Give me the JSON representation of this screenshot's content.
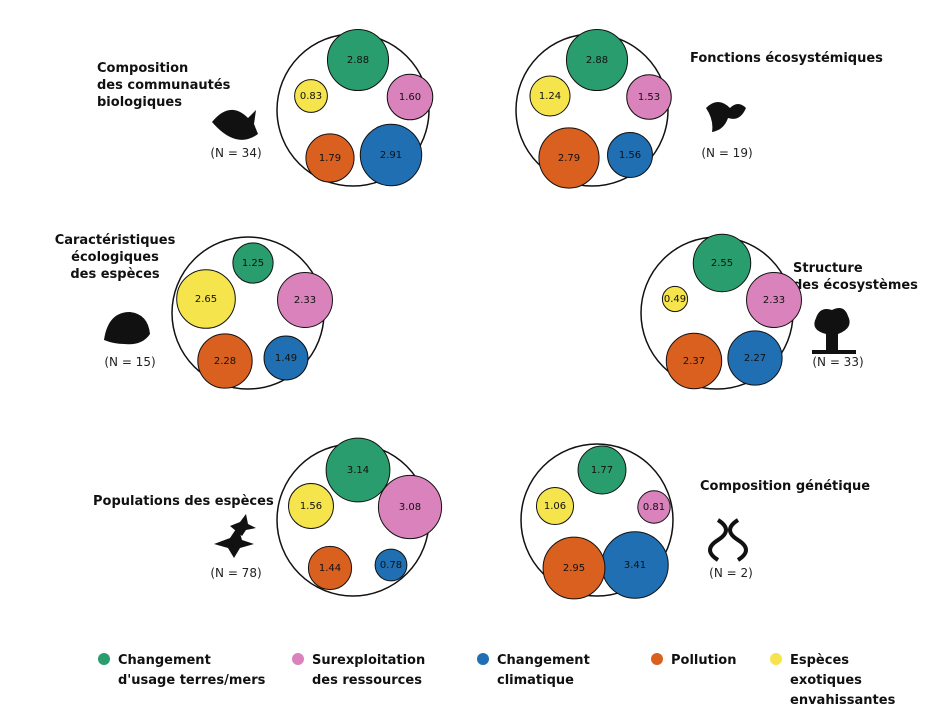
{
  "chart_data": {
    "type": "bubble-groups",
    "categories": [
      "Composition\ndes communautés\nbiologiques",
      "Fonctions écosystémiques",
      "Caractéristiques\nécologiques\ndes espèces",
      "Structure\ndes écosystèmes",
      "Populations des espèces",
      "Composition génétique"
    ],
    "n_labels": [
      "(N = 34)",
      "(N = 19)",
      "(N = 15)",
      "(N = 33)",
      "(N = 78)",
      "(N = 2)"
    ],
    "series": [
      {
        "name": "Changement\nd'usage terres/mers",
        "color": "#2a9d6e",
        "values": [
          2.88,
          2.88,
          1.25,
          2.55,
          3.14,
          1.77
        ],
        "value_labels": [
          "2.88",
          "2.88",
          "1.25",
          "2.55",
          "3.14",
          "1.77"
        ]
      },
      {
        "name": "Surexploitation\ndes ressources",
        "color": "#d982bb",
        "values": [
          1.6,
          1.53,
          2.33,
          2.33,
          3.08,
          0.81
        ],
        "value_labels": [
          "1.60",
          "1.53",
          "2.33",
          "2.33",
          "3.08",
          "0.81"
        ]
      },
      {
        "name": "Changement\nclimatique",
        "color": "#1f6fb2",
        "values": [
          2.91,
          1.56,
          1.49,
          2.27,
          0.78,
          3.41
        ],
        "value_labels": [
          "2.91",
          "1.56",
          "1.49",
          "2.27",
          "0.78",
          "3.41"
        ]
      },
      {
        "name": "Pollution",
        "color": "#d9601f",
        "values": [
          1.79,
          2.79,
          2.28,
          2.37,
          1.44,
          2.95
        ],
        "value_labels": [
          "1.79",
          "2.79",
          "2.28",
          "2.37",
          "1.44",
          "2.95"
        ]
      },
      {
        "name": "Espèces\nexotiques\nenvahissantes",
        "color": "#f5e44c",
        "values": [
          0.83,
          1.24,
          2.65,
          0.49,
          1.56,
          1.06
        ],
        "value_labels": [
          "0.83",
          "1.24",
          "2.65",
          "0.49",
          "1.56",
          "1.06"
        ]
      }
    ]
  }
}
